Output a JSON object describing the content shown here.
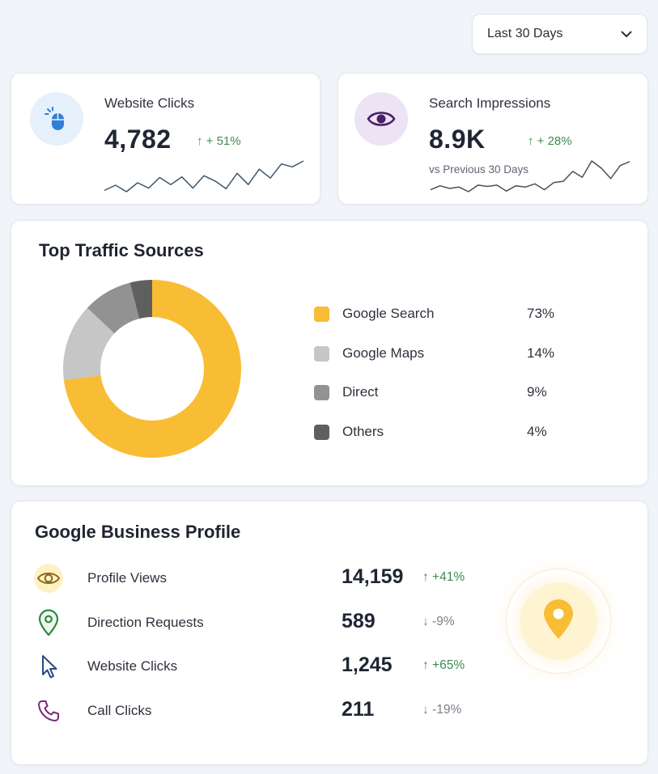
{
  "filter": {
    "range_label": "Last 30 Days",
    "icon": "chevron-down-icon"
  },
  "kpis": [
    {
      "label": "Website Clicks",
      "value": "4,782",
      "change": "↑ + 51%",
      "icon": "mouse-icon",
      "icon_bg": "#e6f0fb",
      "accent": "#2f7fd6",
      "trend": [
        5,
        14,
        3,
        18,
        9,
        27,
        15,
        28,
        9,
        30,
        21,
        8,
        34,
        15,
        41,
        26,
        50,
        45,
        55
      ]
    },
    {
      "label": "Search Impressions",
      "value": "8.9K",
      "change": "↑ + 28%",
      "subtext": "vs Previous 30 Days",
      "icon": "eye-icon",
      "icon_bg": "#ece3f5",
      "accent": "#6a2c8e",
      "trend": [
        8,
        14,
        10,
        12,
        5,
        15,
        13,
        15,
        6,
        14,
        12,
        17,
        8,
        19,
        21,
        36,
        27,
        52,
        41,
        25,
        45,
        51
      ]
    }
  ],
  "traffic": {
    "title": "Top Traffic Sources",
    "sources": [
      {
        "label": "Google Search",
        "pct": "73%",
        "value": 73,
        "color": "#f8bd35"
      },
      {
        "label": "Google Maps",
        "pct": "14%",
        "value": 14,
        "color": "#c6c6c6"
      },
      {
        "label": "Direct",
        "pct": "9%",
        "value": 9,
        "color": "#929292"
      },
      {
        "label": "Others",
        "pct": "4%",
        "value": 4,
        "color": "#5f5f5f"
      }
    ]
  },
  "gbp": {
    "title": "Google Business Profile",
    "rows": [
      {
        "label": "Profile Views",
        "value": "14,159",
        "change": "↑ +41%",
        "direction": "up",
        "icon": "eye-icon"
      },
      {
        "label": "Direction Requests",
        "value": "589",
        "change": "↓ -9%",
        "direction": "down",
        "icon": "location-pin-icon"
      },
      {
        "label": "Website Clicks",
        "value": "1,245",
        "change": "↑ +65%",
        "direction": "up",
        "icon": "cursor-icon"
      },
      {
        "label": "Call Clicks",
        "value": "211",
        "change": "↓ -19%",
        "direction": "down",
        "icon": "phone-icon"
      }
    ],
    "badge_icon": "location-pin-icon",
    "badge_color": "#f8bd35"
  }
}
